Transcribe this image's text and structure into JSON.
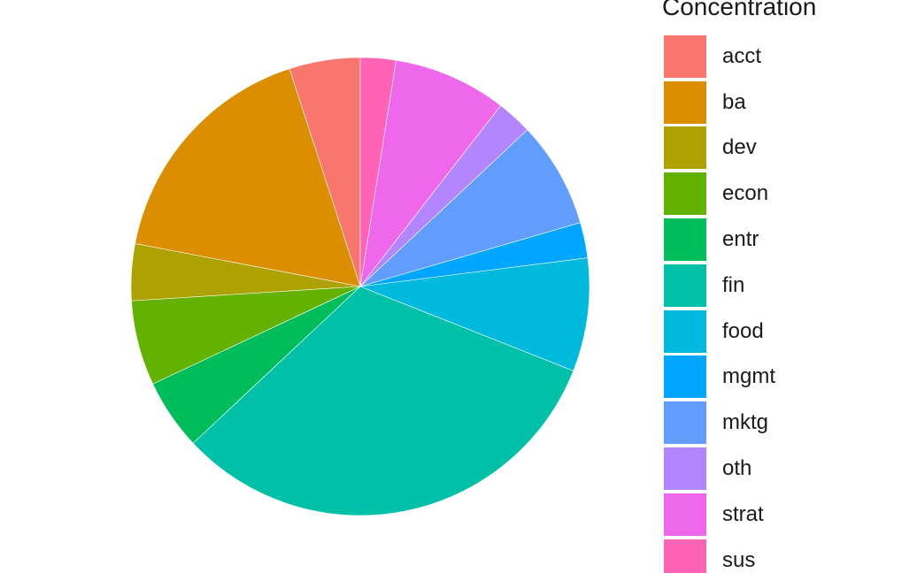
{
  "chart_data": {
    "type": "pie",
    "legend_title": "Concentration",
    "legend_position": "right",
    "categories": [
      "acct",
      "ba",
      "dev",
      "econ",
      "entr",
      "fin",
      "food",
      "mgmt",
      "mktg",
      "oth",
      "strat",
      "sus"
    ],
    "values": [
      5,
      17,
      4,
      6,
      5,
      32,
      8,
      2.5,
      7.5,
      2.5,
      8,
      2.5
    ],
    "colors": [
      "#F8766D",
      "#DB8E00",
      "#AEA200",
      "#64B200",
      "#00BD5C",
      "#00C1A7",
      "#00BADE",
      "#00A6FF",
      "#619CFF",
      "#B385FF",
      "#EF67EB",
      "#FF63B6"
    ]
  }
}
